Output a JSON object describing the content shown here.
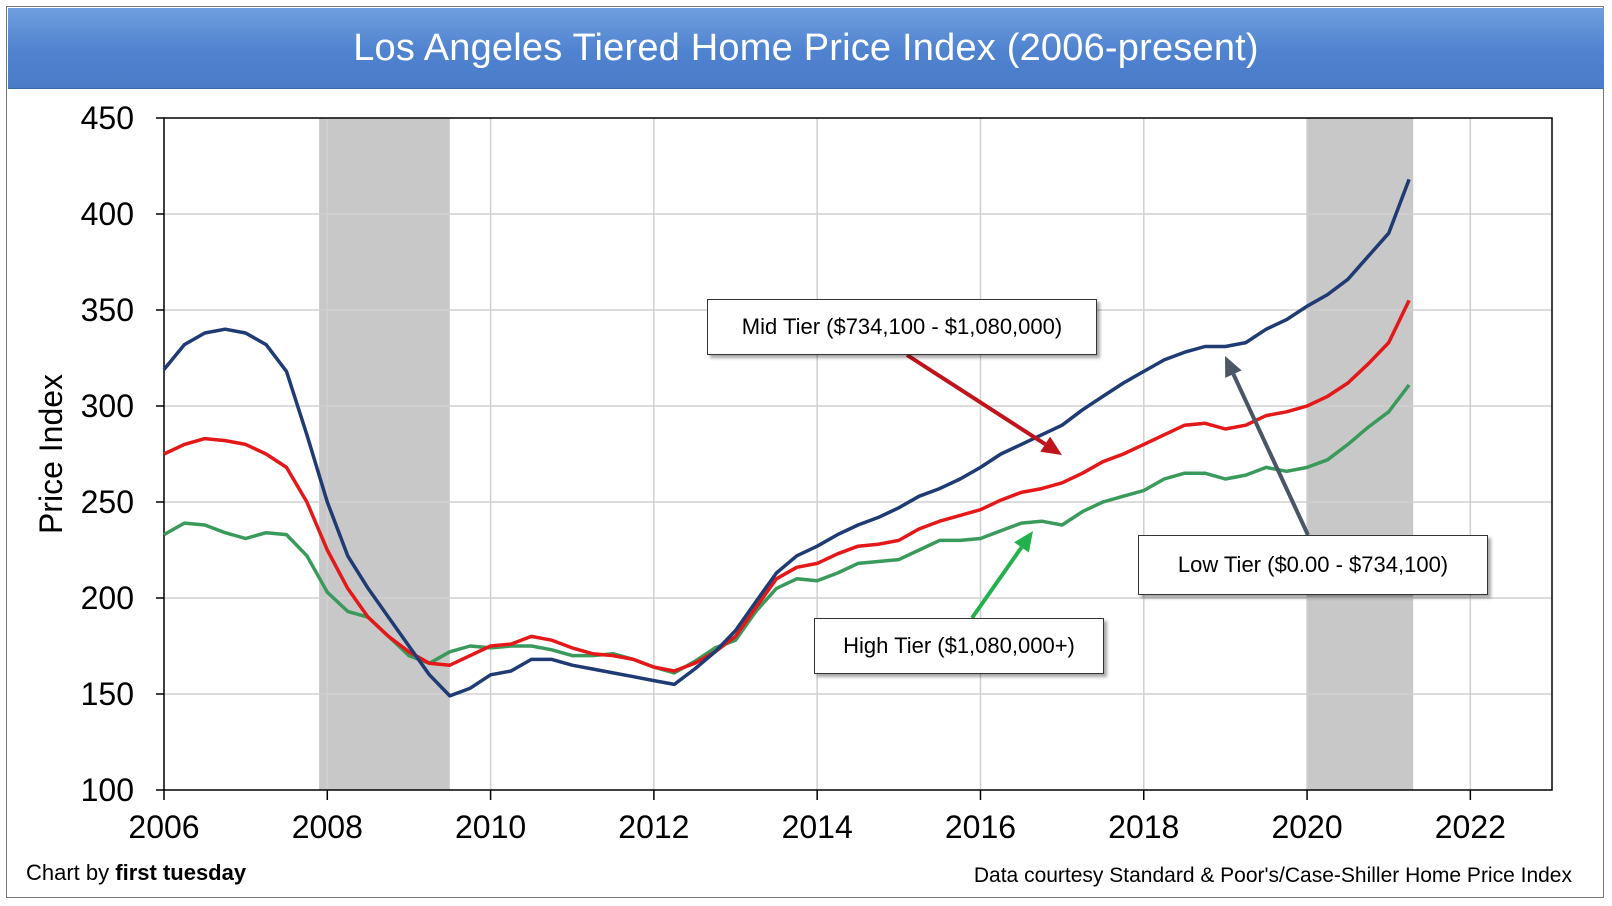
{
  "title": "Los Angeles Tiered Home Price Index (2006-present)",
  "credits": {
    "left_prefix": "Chart by ",
    "left_brand": "first tuesday",
    "right": "Data courtesy Standard & Poor's/Case-Shiller Home Price Index"
  },
  "annotations": {
    "mid": "Mid Tier ($734,100 - $1,080,000)",
    "low": "Low Tier ($0.00 - $734,100)",
    "high": "High Tier ($1,080,000+)"
  },
  "colors": {
    "low": "#1f3b73",
    "mid": "#e41818",
    "high": "#3a9a5c",
    "recession": "#c8c8c8",
    "grid": "#d0d0d0",
    "arrow_mid": "#c0141c",
    "arrow_low": "#4a5566",
    "arrow_high": "#22b14c"
  },
  "chart_data": {
    "type": "line",
    "title": "Los Angeles Tiered Home Price Index (2006-present)",
    "xlabel": "",
    "ylabel": "Price Index",
    "xlim": [
      2006,
      2023
    ],
    "ylim": [
      100,
      450
    ],
    "xticks": [
      2006,
      2008,
      2010,
      2012,
      2014,
      2016,
      2018,
      2020,
      2022
    ],
    "yticks": [
      100,
      150,
      200,
      250,
      300,
      350,
      400,
      450
    ],
    "grid": true,
    "recession_bands": [
      [
        2007.9,
        2009.5
      ],
      [
        2020.0,
        2021.3
      ]
    ],
    "series": [
      {
        "name": "Low Tier ($0.00 - $734,100)",
        "x": [
          2006.0,
          2006.25,
          2006.5,
          2006.75,
          2007.0,
          2007.25,
          2007.5,
          2007.75,
          2008.0,
          2008.25,
          2008.5,
          2008.75,
          2009.0,
          2009.25,
          2009.5,
          2009.75,
          2010.0,
          2010.25,
          2010.5,
          2010.75,
          2011.0,
          2011.25,
          2011.5,
          2011.75,
          2012.0,
          2012.25,
          2012.5,
          2012.75,
          2013.0,
          2013.25,
          2013.5,
          2013.75,
          2014.0,
          2014.25,
          2014.5,
          2014.75,
          2015.0,
          2015.25,
          2015.5,
          2015.75,
          2016.0,
          2016.25,
          2016.5,
          2016.75,
          2017.0,
          2017.25,
          2017.5,
          2017.75,
          2018.0,
          2018.25,
          2018.5,
          2018.75,
          2019.0,
          2019.25,
          2019.5,
          2019.75,
          2020.0,
          2020.25,
          2020.5,
          2020.75,
          2021.0,
          2021.25
        ],
        "values": [
          319,
          332,
          338,
          340,
          338,
          332,
          318,
          285,
          250,
          222,
          205,
          190,
          175,
          160,
          149,
          153,
          160,
          162,
          168,
          168,
          165,
          163,
          161,
          159,
          157,
          155,
          163,
          172,
          183,
          198,
          213,
          222,
          227,
          233,
          238,
          242,
          247,
          253,
          257,
          262,
          268,
          275,
          280,
          285,
          290,
          298,
          305,
          312,
          318,
          324,
          328,
          331,
          331,
          333,
          340,
          345,
          352,
          358,
          366,
          378,
          390,
          418
        ]
      },
      {
        "name": "Mid Tier ($734,100 - $1,080,000)",
        "x": [
          2006.0,
          2006.25,
          2006.5,
          2006.75,
          2007.0,
          2007.25,
          2007.5,
          2007.75,
          2008.0,
          2008.25,
          2008.5,
          2008.75,
          2009.0,
          2009.25,
          2009.5,
          2009.75,
          2010.0,
          2010.25,
          2010.5,
          2010.75,
          2011.0,
          2011.25,
          2011.5,
          2011.75,
          2012.0,
          2012.25,
          2012.5,
          2012.75,
          2013.0,
          2013.25,
          2013.5,
          2013.75,
          2014.0,
          2014.25,
          2014.5,
          2014.75,
          2015.0,
          2015.25,
          2015.5,
          2015.75,
          2016.0,
          2016.25,
          2016.5,
          2016.75,
          2017.0,
          2017.25,
          2017.5,
          2017.75,
          2018.0,
          2018.25,
          2018.5,
          2018.75,
          2019.0,
          2019.25,
          2019.5,
          2019.75,
          2020.0,
          2020.25,
          2020.5,
          2020.75,
          2021.0,
          2021.25
        ],
        "values": [
          275,
          280,
          283,
          282,
          280,
          275,
          268,
          250,
          225,
          205,
          190,
          180,
          172,
          166,
          165,
          170,
          175,
          176,
          180,
          178,
          174,
          171,
          170,
          168,
          164,
          162,
          166,
          172,
          180,
          195,
          210,
          216,
          218,
          223,
          227,
          228,
          230,
          236,
          240,
          243,
          246,
          251,
          255,
          257,
          260,
          265,
          271,
          275,
          280,
          285,
          290,
          291,
          288,
          290,
          295,
          297,
          300,
          305,
          312,
          322,
          333,
          355
        ]
      },
      {
        "name": "High Tier ($1,080,000+)",
        "x": [
          2006.0,
          2006.25,
          2006.5,
          2006.75,
          2007.0,
          2007.25,
          2007.5,
          2007.75,
          2008.0,
          2008.25,
          2008.5,
          2008.75,
          2009.0,
          2009.25,
          2009.5,
          2009.75,
          2010.0,
          2010.25,
          2010.5,
          2010.75,
          2011.0,
          2011.25,
          2011.5,
          2011.75,
          2012.0,
          2012.25,
          2012.5,
          2012.75,
          2013.0,
          2013.25,
          2013.5,
          2013.75,
          2014.0,
          2014.25,
          2014.5,
          2014.75,
          2015.0,
          2015.25,
          2015.5,
          2015.75,
          2016.0,
          2016.25,
          2016.5,
          2016.75,
          2017.0,
          2017.25,
          2017.5,
          2017.75,
          2018.0,
          2018.25,
          2018.5,
          2018.75,
          2019.0,
          2019.25,
          2019.5,
          2019.75,
          2020.0,
          2020.25,
          2020.5,
          2020.75,
          2021.0,
          2021.25
        ],
        "values": [
          233,
          239,
          238,
          234,
          231,
          234,
          233,
          222,
          203,
          193,
          190,
          180,
          170,
          166,
          172,
          175,
          174,
          175,
          175,
          173,
          170,
          170,
          171,
          168,
          164,
          161,
          167,
          174,
          178,
          193,
          205,
          210,
          209,
          213,
          218,
          219,
          220,
          225,
          230,
          230,
          231,
          235,
          239,
          240,
          238,
          245,
          250,
          253,
          256,
          262,
          265,
          265,
          262,
          264,
          268,
          266,
          268,
          272,
          280,
          289,
          297,
          311
        ]
      }
    ]
  }
}
